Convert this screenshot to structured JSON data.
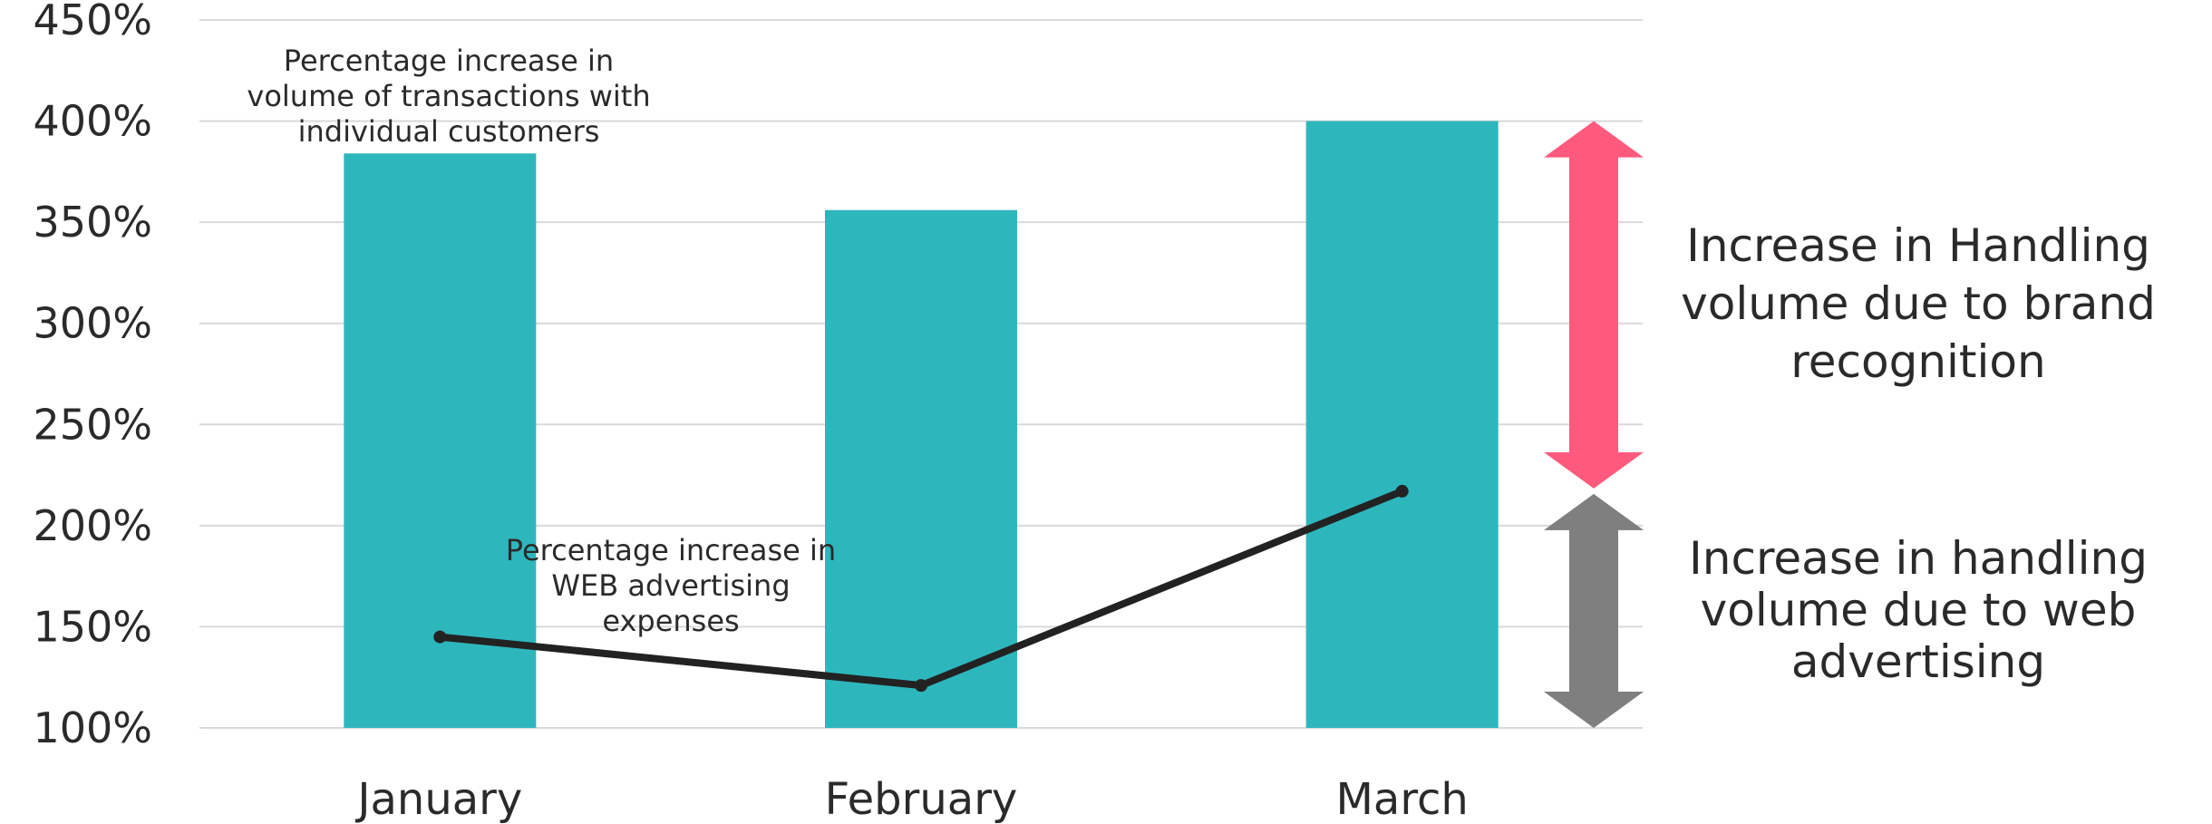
{
  "chart_data": {
    "type": "bar",
    "categories": [
      "January",
      "February",
      "March"
    ],
    "ylim": [
      100,
      450
    ],
    "yticks": [
      100,
      150,
      200,
      250,
      300,
      350,
      400,
      450
    ],
    "ytick_labels": [
      "100%",
      "150%",
      "200%",
      "250%",
      "300%",
      "350%",
      "400%",
      "450%"
    ],
    "grid": true,
    "series": [
      {
        "kind": "bar",
        "values": [
          384,
          356,
          400
        ],
        "color": "#2eb6bd",
        "label_lines": [
          "Percentage increase in",
          "volume of transactions with",
          "individual customers"
        ]
      },
      {
        "kind": "line",
        "values": [
          145,
          121,
          217
        ],
        "color": "#222222",
        "label_lines": [
          "Percentage increase in",
          "WEB advertising",
          "expenses"
        ]
      }
    ],
    "brackets": [
      {
        "from": 217,
        "to": 400,
        "color": "#ff5a7d",
        "label_lines": [
          "Increase in Handling",
          "volume due to brand",
          "recognition"
        ]
      },
      {
        "from": 100,
        "to": 217,
        "color": "#7f7f7f",
        "label_lines": [
          "Increase in handling",
          "volume due to web",
          "advertising"
        ]
      }
    ]
  }
}
